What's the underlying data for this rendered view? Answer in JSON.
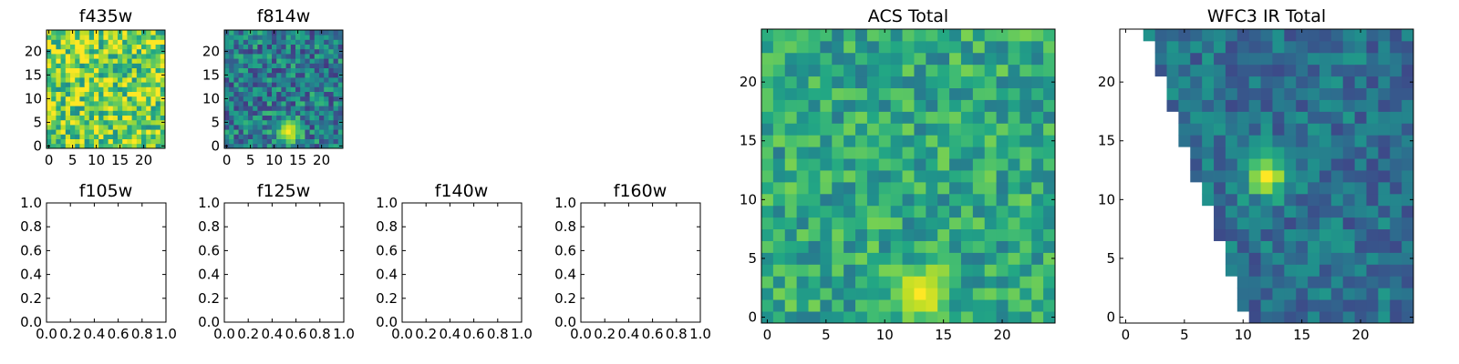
{
  "chart_data": [
    {
      "type": "heatmap",
      "title": "f435w",
      "xlabel": "",
      "ylabel": "",
      "xlim": [
        -0.5,
        24.5
      ],
      "ylim": [
        -0.5,
        24.5
      ],
      "xticks": [
        0,
        5,
        10,
        15,
        20
      ],
      "yticks": [
        0,
        5,
        10,
        15,
        20
      ],
      "grid": false,
      "colormap": "viridis",
      "image": {
        "size": 25,
        "base": 0.78,
        "noise": 0.3,
        "seed": 11,
        "blob": null
      }
    },
    {
      "type": "heatmap",
      "title": "f814w",
      "xlabel": "",
      "ylabel": "",
      "xlim": [
        -0.5,
        24.5
      ],
      "ylim": [
        -0.5,
        24.5
      ],
      "xticks": [
        0,
        5,
        10,
        15,
        20
      ],
      "yticks": [
        0,
        5,
        10,
        15,
        20
      ],
      "grid": false,
      "colormap": "viridis",
      "image": {
        "size": 25,
        "base": 0.42,
        "noise": 0.26,
        "seed": 23,
        "blob": {
          "x": 13,
          "y": 3,
          "sigma": 1.7,
          "amp": 1.0
        }
      }
    },
    {
      "type": "empty",
      "title": "f105w",
      "xlim": [
        0.0,
        1.0
      ],
      "ylim": [
        0.0,
        1.0
      ],
      "xticks": [
        "0.0",
        "0.2",
        "0.4",
        "0.6",
        "0.8",
        "1.0"
      ],
      "yticks": [
        "0.0",
        "0.2",
        "0.4",
        "0.6",
        "0.8",
        "1.0"
      ]
    },
    {
      "type": "empty",
      "title": "f125w",
      "xlim": [
        0.0,
        1.0
      ],
      "ylim": [
        0.0,
        1.0
      ],
      "xticks": [
        "0.0",
        "0.2",
        "0.4",
        "0.6",
        "0.8",
        "1.0"
      ],
      "yticks": [
        "0.0",
        "0.2",
        "0.4",
        "0.6",
        "0.8",
        "1.0"
      ]
    },
    {
      "type": "empty",
      "title": "f140w",
      "xlim": [
        0.0,
        1.0
      ],
      "ylim": [
        0.0,
        1.0
      ],
      "xticks": [
        "0.0",
        "0.2",
        "0.4",
        "0.6",
        "0.8",
        "1.0"
      ],
      "yticks": [
        "0.0",
        "0.2",
        "0.4",
        "0.6",
        "0.8",
        "1.0"
      ]
    },
    {
      "type": "empty",
      "title": "f160w",
      "xlim": [
        0.0,
        1.0
      ],
      "ylim": [
        0.0,
        1.0
      ],
      "xticks": [
        "0.0",
        "0.2",
        "0.4",
        "0.6",
        "0.8",
        "1.0"
      ],
      "yticks": [
        "0.0",
        "0.2",
        "0.4",
        "0.6",
        "0.8",
        "1.0"
      ]
    },
    {
      "type": "heatmap",
      "title": "ACS Total",
      "xlabel": "",
      "ylabel": "",
      "xlim": [
        -0.5,
        24.5
      ],
      "ylim": [
        -0.5,
        24.5
      ],
      "xticks": [
        0,
        5,
        10,
        15,
        20
      ],
      "yticks": [
        0,
        5,
        10,
        15,
        20
      ],
      "grid": false,
      "colormap": "viridis",
      "image": {
        "size": 25,
        "base": 0.6,
        "noise": 0.2,
        "seed": 37,
        "blob": {
          "x": 13,
          "y": 2,
          "sigma": 1.6,
          "amp": 1.0
        }
      }
    },
    {
      "type": "heatmap",
      "title": "WFC3 IR Total",
      "xlabel": "",
      "ylabel": "",
      "xlim": [
        -0.5,
        24.5
      ],
      "ylim": [
        -0.5,
        24.5
      ],
      "xticks": [
        0,
        5,
        10,
        15,
        20
      ],
      "yticks": [
        0,
        5,
        10,
        15,
        20
      ],
      "grid": false,
      "colormap": "viridis",
      "image": {
        "size": 25,
        "base": 0.38,
        "noise": 0.16,
        "seed": 53,
        "blob": {
          "x": 12,
          "y": 12,
          "sigma": 1.2,
          "amp": 1.0
        },
        "masked_region": "lower-left triangle"
      }
    }
  ]
}
